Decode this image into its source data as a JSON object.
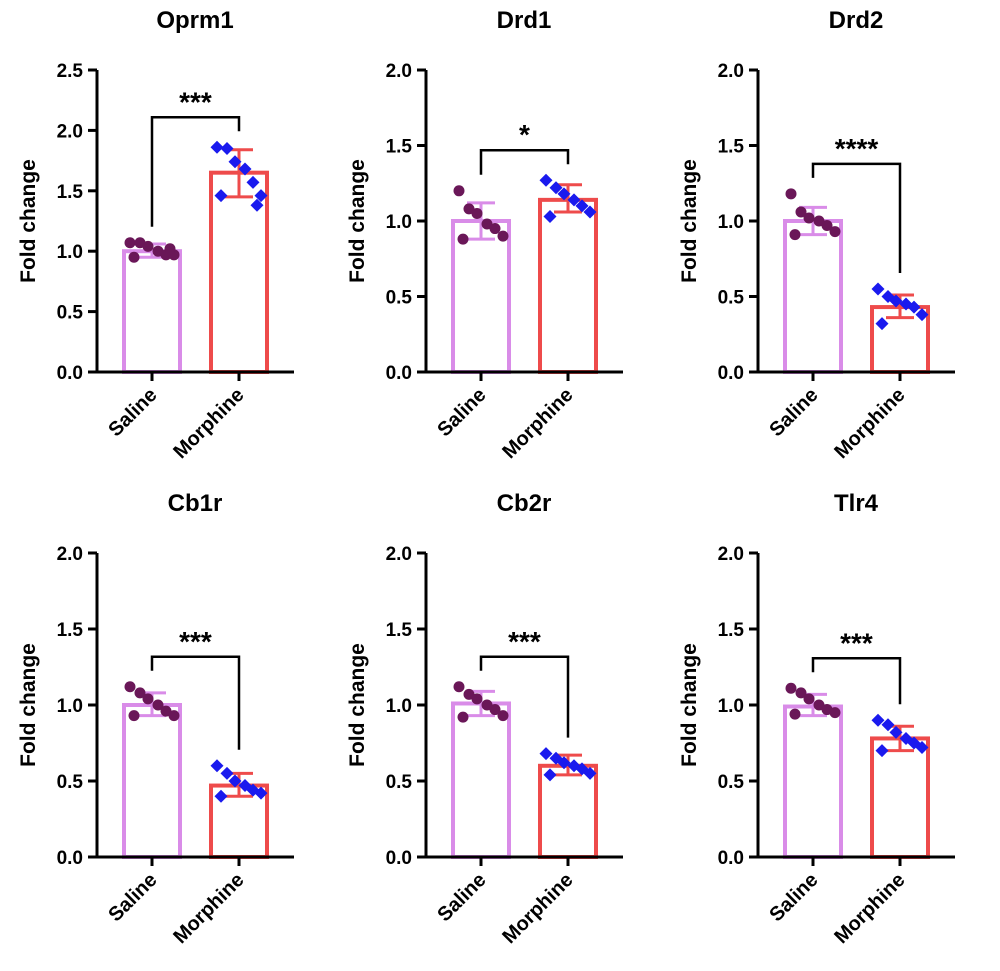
{
  "colors": {
    "saline_bar": "#d98ce8",
    "morphine_bar": "#ee4b4b",
    "saline_points": "#6a1758",
    "morphine_points": "#1a1aee",
    "axis": "#000000"
  },
  "chart_data": [
    {
      "type": "bar",
      "title": "Oprm1",
      "ylabel": "Fold change",
      "categories": [
        "Saline",
        "Morphine"
      ],
      "ylim": [
        0,
        2.5
      ],
      "yticks": [
        "0.0",
        "0.5",
        "1.0",
        "1.5",
        "2.0",
        "2.5"
      ],
      "significance": "***",
      "series": [
        {
          "category": "Saline",
          "mean": 1.0,
          "error": [
            0.95,
            1.06
          ],
          "points": [
            1.07,
            1.07,
            1.04,
            1.0,
            0.97,
            0.97,
            0.95,
            1.02
          ]
        },
        {
          "category": "Morphine",
          "mean": 1.65,
          "error": [
            1.45,
            1.84
          ],
          "points": [
            1.86,
            1.85,
            1.74,
            1.68,
            1.57,
            1.46,
            1.46,
            1.38
          ]
        }
      ]
    },
    {
      "type": "bar",
      "title": "Drd1",
      "ylabel": "Fold change",
      "categories": [
        "Saline",
        "Morphine"
      ],
      "ylim": [
        0,
        2.0
      ],
      "yticks": [
        "0.0",
        "0.5",
        "1.0",
        "1.5",
        "2.0"
      ],
      "significance": "*",
      "series": [
        {
          "category": "Saline",
          "mean": 1.0,
          "error": [
            0.88,
            1.12
          ],
          "points": [
            1.2,
            1.08,
            1.05,
            0.98,
            0.95,
            0.9,
            0.88
          ]
        },
        {
          "category": "Morphine",
          "mean": 1.14,
          "error": [
            1.06,
            1.24
          ],
          "points": [
            1.27,
            1.22,
            1.18,
            1.14,
            1.1,
            1.06,
            1.03
          ]
        }
      ]
    },
    {
      "type": "bar",
      "title": "Drd2",
      "ylabel": "Fold change",
      "categories": [
        "Saline",
        "Morphine"
      ],
      "ylim": [
        0,
        2.0
      ],
      "yticks": [
        "0.0",
        "0.5",
        "1.0",
        "1.5",
        "2.0"
      ],
      "significance": "****",
      "series": [
        {
          "category": "Saline",
          "mean": 1.0,
          "error": [
            0.91,
            1.09
          ],
          "points": [
            1.18,
            1.06,
            1.02,
            1.0,
            0.97,
            0.93,
            0.91
          ]
        },
        {
          "category": "Morphine",
          "mean": 0.43,
          "error": [
            0.36,
            0.51
          ],
          "points": [
            0.55,
            0.5,
            0.47,
            0.45,
            0.43,
            0.38,
            0.32
          ]
        }
      ]
    },
    {
      "type": "bar",
      "title": "Cb1r",
      "ylabel": "Fold change",
      "categories": [
        "Saline",
        "Morphine"
      ],
      "ylim": [
        0,
        2.0
      ],
      "yticks": [
        "0.0",
        "0.5",
        "1.0",
        "1.5",
        "2.0"
      ],
      "significance": "***",
      "series": [
        {
          "category": "Saline",
          "mean": 1.0,
          "error": [
            0.93,
            1.08
          ],
          "points": [
            1.12,
            1.08,
            1.04,
            1.0,
            0.96,
            0.93,
            0.93
          ]
        },
        {
          "category": "Morphine",
          "mean": 0.47,
          "error": [
            0.4,
            0.55
          ],
          "points": [
            0.6,
            0.55,
            0.5,
            0.47,
            0.44,
            0.42,
            0.4
          ]
        }
      ]
    },
    {
      "type": "bar",
      "title": "Cb2r",
      "ylabel": "Fold change",
      "categories": [
        "Saline",
        "Morphine"
      ],
      "ylim": [
        0,
        2.0
      ],
      "yticks": [
        "0.0",
        "0.5",
        "1.0",
        "1.5",
        "2.0"
      ],
      "significance": "***",
      "series": [
        {
          "category": "Saline",
          "mean": 1.01,
          "error": [
            0.93,
            1.09
          ],
          "points": [
            1.12,
            1.07,
            1.04,
            1.0,
            0.97,
            0.93,
            0.92
          ]
        },
        {
          "category": "Morphine",
          "mean": 0.6,
          "error": [
            0.54,
            0.67
          ],
          "points": [
            0.68,
            0.65,
            0.62,
            0.6,
            0.58,
            0.55,
            0.54
          ]
        }
      ]
    },
    {
      "type": "bar",
      "title": "Tlr4",
      "ylabel": "Fold change",
      "categories": [
        "Saline",
        "Morphine"
      ],
      "ylim": [
        0,
        2.0
      ],
      "yticks": [
        "0.0",
        "0.5",
        "1.0",
        "1.5",
        "2.0"
      ],
      "significance": "***",
      "series": [
        {
          "category": "Saline",
          "mean": 0.99,
          "error": [
            0.93,
            1.07
          ],
          "points": [
            1.11,
            1.08,
            1.04,
            1.0,
            0.97,
            0.95,
            0.94
          ]
        },
        {
          "category": "Morphine",
          "mean": 0.78,
          "error": [
            0.7,
            0.86
          ],
          "points": [
            0.9,
            0.87,
            0.82,
            0.78,
            0.75,
            0.72,
            0.7
          ]
        }
      ]
    }
  ]
}
